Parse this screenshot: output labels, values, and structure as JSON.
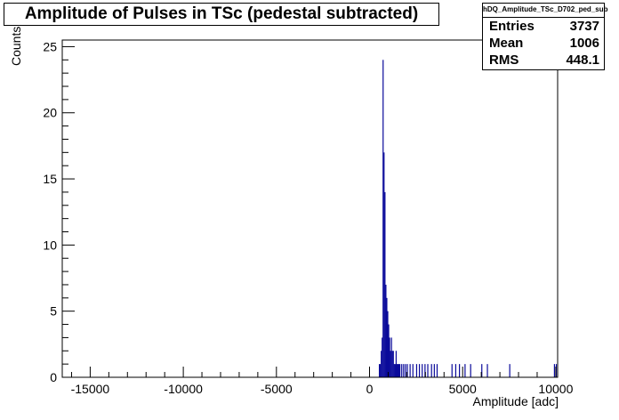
{
  "chart_data": {
    "type": "bar",
    "title": "Amplitude of Pulses in TSc (pedestal subtracted)",
    "xlabel": "Amplitude [adc]",
    "ylabel": "Counts",
    "xlim": [
      -16500,
      10100
    ],
    "ylim": [
      0,
      25.5
    ],
    "xticks": [
      -15000,
      -10000,
      -5000,
      0,
      5000,
      10000
    ],
    "yticks": [
      0,
      5,
      10,
      15,
      20,
      25
    ],
    "bin_width": 50,
    "bar_color": "#0a0a9a",
    "stats": {
      "name": "hDQ_Amplitude_TSc_D702_ped_sub",
      "entries_label": "Entries",
      "entries": "3737",
      "mean_label": "Mean",
      "mean": "1006",
      "rms_label": "RMS",
      "rms": "448.1"
    },
    "bins": [
      {
        "x": 500,
        "y": 1
      },
      {
        "x": 550,
        "y": 1
      },
      {
        "x": 600,
        "y": 2
      },
      {
        "x": 650,
        "y": 3
      },
      {
        "x": 700,
        "y": 24
      },
      {
        "x": 750,
        "y": 17
      },
      {
        "x": 800,
        "y": 14
      },
      {
        "x": 850,
        "y": 7
      },
      {
        "x": 900,
        "y": 6
      },
      {
        "x": 950,
        "y": 5
      },
      {
        "x": 1000,
        "y": 4
      },
      {
        "x": 1050,
        "y": 3
      },
      {
        "x": 1100,
        "y": 2
      },
      {
        "x": 1150,
        "y": 3
      },
      {
        "x": 1200,
        "y": 2
      },
      {
        "x": 1250,
        "y": 2
      },
      {
        "x": 1300,
        "y": 1
      },
      {
        "x": 1350,
        "y": 1
      },
      {
        "x": 1400,
        "y": 2
      },
      {
        "x": 1450,
        "y": 1
      },
      {
        "x": 1500,
        "y": 1
      },
      {
        "x": 1550,
        "y": 1
      },
      {
        "x": 1600,
        "y": 1
      },
      {
        "x": 1700,
        "y": 1
      },
      {
        "x": 1800,
        "y": 1
      },
      {
        "x": 1900,
        "y": 1
      },
      {
        "x": 2000,
        "y": 1
      },
      {
        "x": 2150,
        "y": 1
      },
      {
        "x": 2300,
        "y": 1
      },
      {
        "x": 2500,
        "y": 1
      },
      {
        "x": 2650,
        "y": 1
      },
      {
        "x": 2800,
        "y": 1
      },
      {
        "x": 2950,
        "y": 1
      },
      {
        "x": 3100,
        "y": 1
      },
      {
        "x": 3300,
        "y": 1
      },
      {
        "x": 3450,
        "y": 1
      },
      {
        "x": 3600,
        "y": 1
      },
      {
        "x": 4400,
        "y": 1
      },
      {
        "x": 4600,
        "y": 1
      },
      {
        "x": 4800,
        "y": 1
      },
      {
        "x": 5100,
        "y": 1
      },
      {
        "x": 5400,
        "y": 1
      },
      {
        "x": 6000,
        "y": 1
      },
      {
        "x": 6300,
        "y": 1
      },
      {
        "x": 7500,
        "y": 1
      },
      {
        "x": 9900,
        "y": 1
      },
      {
        "x": 10000,
        "y": 1
      }
    ]
  }
}
